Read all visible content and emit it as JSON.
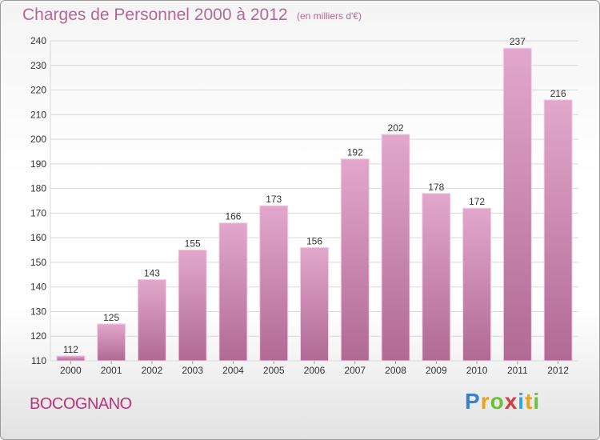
{
  "header": {
    "title": "Charges de Personnel 2000 à 2012",
    "subtitle": "(en milliers d'€)"
  },
  "footer": {
    "commune": "BOCOGNANO",
    "logo_letters": [
      "P",
      "r",
      "o",
      "x",
      "i",
      "t",
      "i"
    ],
    "logo_colors": [
      "#3a7fd0",
      "#e8a21c",
      "#6cbf3a",
      "#d83b3b",
      "#3a9fd8",
      "#e8a21c",
      "#6cbf3a"
    ]
  },
  "colors": {
    "bar_top": "#e3a7cc",
    "bar_bottom": "#b06a93",
    "bar_edge": "#f2d1e4",
    "grid": "#d8d8d8",
    "axis_text": "#333333"
  },
  "chart_data": {
    "type": "bar",
    "categories": [
      "2000",
      "2001",
      "2002",
      "2003",
      "2004",
      "2005",
      "2006",
      "2007",
      "2008",
      "2009",
      "2010",
      "2011",
      "2012"
    ],
    "values": [
      112,
      125,
      143,
      155,
      166,
      173,
      156,
      192,
      202,
      178,
      172,
      237,
      216
    ],
    "ylim": [
      110,
      240
    ],
    "yticks": [
      110,
      120,
      130,
      140,
      150,
      160,
      170,
      180,
      190,
      200,
      210,
      220,
      230,
      240
    ],
    "xlabel": "",
    "ylabel": "",
    "grid": true
  }
}
